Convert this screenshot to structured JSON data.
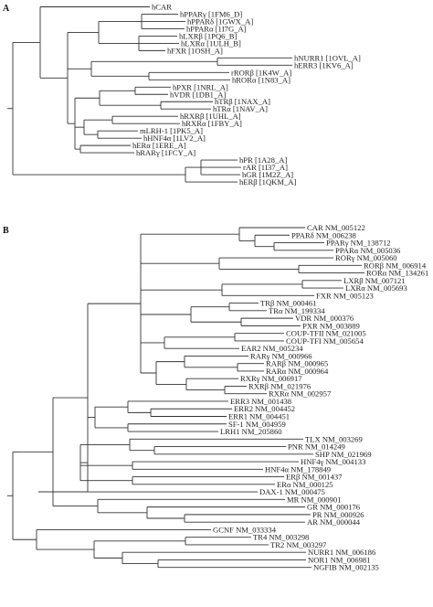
{
  "panels": [
    {
      "id": "A",
      "label": "A",
      "leaves": [
        "hCAR",
        "hPPARγ [1FM6_D]",
        "hPPARδ [1GWX_A]",
        "hPPARα [1I7G_A]",
        "hLXRβ [1PQ6_B]",
        "hLXRα [1ULH_B]",
        "hFXR [1OSH_A]",
        "hNURR1 [1OVL_A]",
        "hERR3 [1KV6_A]",
        "rRORβ [1K4W_A]",
        "hRORα [1N83_A]",
        "hPXR [1NRL_A]",
        "hVDR [1DB1_A]",
        "hTRβ [1NAX_A]",
        "hTRα [1NAV_A]",
        "hRXRβ [1UHL_A]",
        "hRXRα [1FBY_A]",
        "mLRH-1 [1PK5_A]",
        "hHNF4α [1LV2_A]",
        "hERα [1ERE_A]",
        "hRARγ [1FCY_A]",
        "hPR [1A28_A]",
        "rAR [1I37_A]",
        "hGR [1M2Z_A]",
        "hERβ [1QKM_A]"
      ]
    },
    {
      "id": "B",
      "label": "B",
      "leaves": [
        "CAR NM_005122",
        "PPARδ NM_006238",
        "PPARγ NM_138712",
        "PPARα NM_005036",
        "RORγ NM_005060",
        "RORβ NM_006914",
        "RORα NM_134261",
        "LXRβ NM_007121",
        "LXRα NM_005693",
        "FXR NM_005123",
        "TRβ NM_000461",
        "TRα NM_199334",
        "VDR NM_000376",
        "PXR NM_003889",
        "COUP-TFII NM_021005",
        "COUP-TFI NM_005654",
        "EAR2 NM_005234",
        "RARγ NM_000966",
        "RARβ NM_000965",
        "RARα NM_000964",
        "RXRγ NM_006917",
        "RXRβ NM_021976",
        "RXRα NM_002957",
        "ERR3 NM_001438",
        "ERR2 NM_004452",
        "ERR1 NM_004451",
        "SF-1 NM_004959",
        "LRH1 NM_205860",
        "TLX NM_003269",
        "PNR NM_014249",
        "SHP NM_021969",
        "HNF4γ NM_004133",
        "HNF4α NM_178849",
        "ERβ NM_001437",
        "ERα NM_000125",
        "DAX-1 NM_000475",
        "MR NM_000901",
        "GR NM_000176",
        "PR NM_000926",
        "AR NM_000044",
        "GCNF NM_033334",
        "TR4 NM_003298",
        "TR2 NM_003297",
        "NURR1 NM_006186",
        "NOR1 NM_006981",
        "NGFIB NM_002135"
      ]
    }
  ]
}
